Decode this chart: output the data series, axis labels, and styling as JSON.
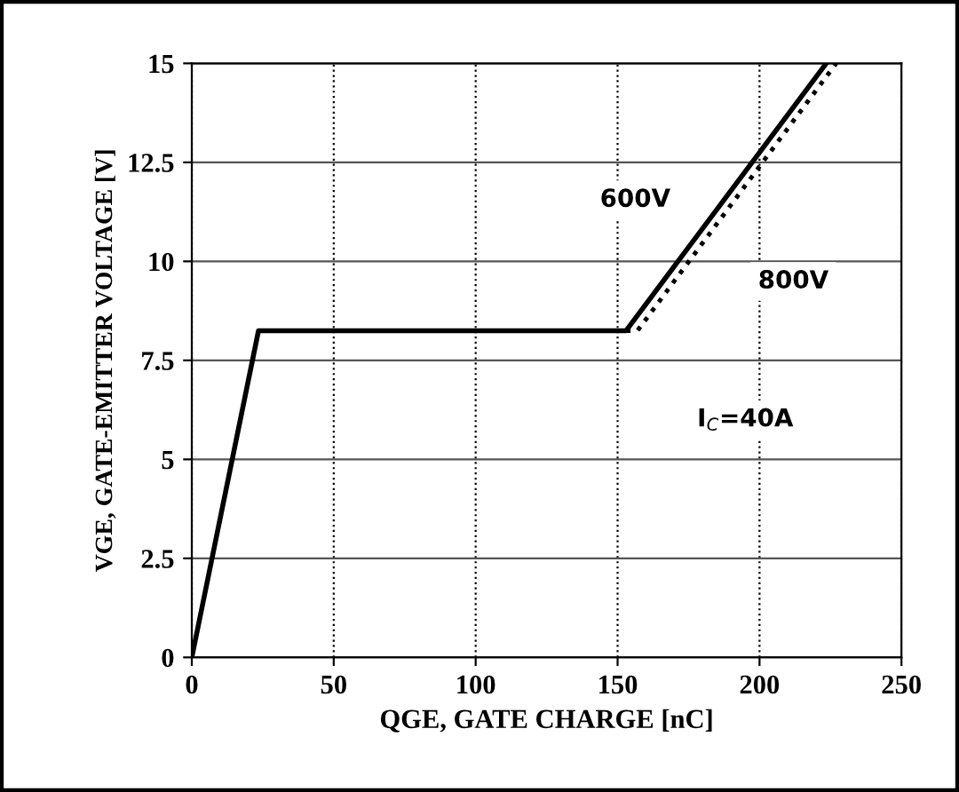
{
  "chart_data": {
    "type": "line",
    "xlabel": "QGE, GATE CHARGE [nC]",
    "ylabel": "VGE, GATE-EMITTER VOLTAGE [V]",
    "series": [
      {
        "name": "600V",
        "color": "#000000",
        "x": [
          0,
          23.5,
          153,
          223.5
        ],
        "values": [
          0,
          8.25,
          8.25,
          15
        ],
        "line_style": "solid"
      },
      {
        "name": "800V",
        "color": "#000000",
        "x": [
          153,
          157,
          227
        ],
        "values": [
          8.25,
          8.25,
          15
        ],
        "line_style": "dotted"
      }
    ],
    "xlim": [
      0,
      250
    ],
    "xticks": [
      0,
      50,
      100,
      150,
      200,
      250
    ],
    "ylim": [
      0,
      15
    ],
    "yticks": [
      0,
      2.5,
      5,
      7.5,
      10,
      12.5,
      15
    ],
    "grid": true,
    "marker": "none",
    "annotations": [
      "I$_{C}$=40A"
    ]
  }
}
